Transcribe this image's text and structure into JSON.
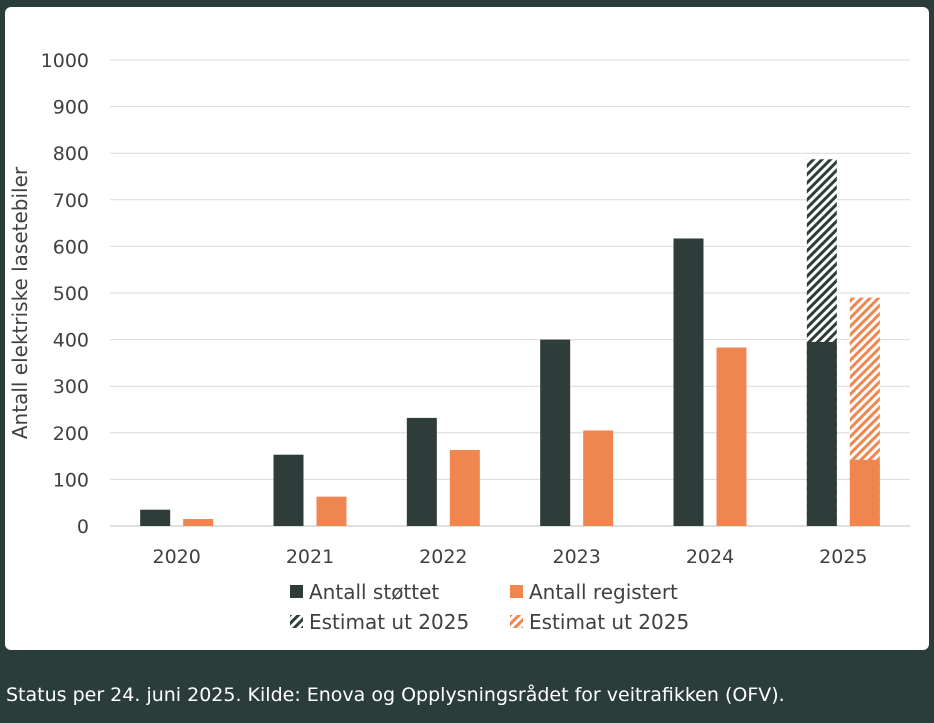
{
  "caption": "Status per 24. juni 2025. Kilde: Enova og Opplysningsrådet for veitrafikken (OFV).",
  "chart_data": {
    "type": "bar",
    "ylabel": "Antall elektriske lasetebiler",
    "ylim": [
      0,
      1000
    ],
    "yticks": [
      0,
      100,
      200,
      300,
      400,
      500,
      600,
      700,
      800,
      900,
      1000
    ],
    "grid": true,
    "categories": [
      "2020",
      "2021",
      "2022",
      "2023",
      "2024",
      "2025"
    ],
    "series": [
      {
        "name": "Antall støttet",
        "values": [
          35,
          153,
          232,
          400,
          617,
          395
        ],
        "color": "#2f3d3a",
        "pattern": "solid"
      },
      {
        "name": "Antall registert",
        "values": [
          15,
          63,
          163,
          205,
          383,
          142
        ],
        "color": "#ef8650",
        "pattern": "solid"
      },
      {
        "name": "Estimat ut 2025",
        "values": [
          null,
          null,
          null,
          null,
          null,
          787
        ],
        "color": "#2f3d3a",
        "pattern": "hatched",
        "stack_base": "Antall støttet"
      },
      {
        "name": "Estimat ut 2025",
        "values": [
          null,
          null,
          null,
          null,
          null,
          490
        ],
        "color": "#ef8650",
        "pattern": "hatched",
        "stack_base": "Antall registert"
      }
    ],
    "legend_position": "bottom"
  }
}
